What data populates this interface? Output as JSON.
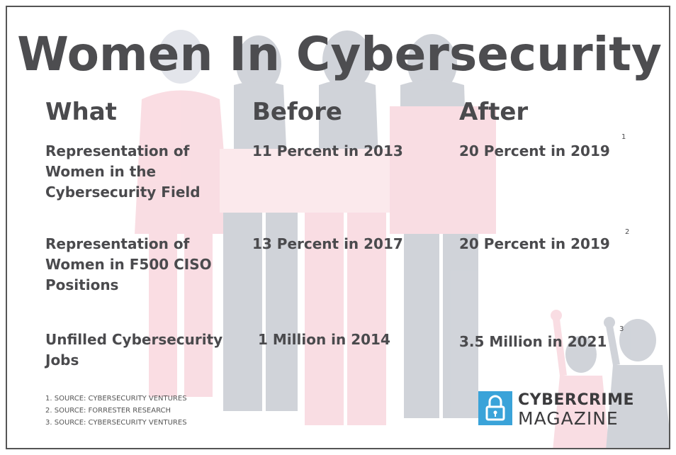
{
  "title": "Women In Cybersecurity",
  "columns": {
    "what": "What",
    "before": "Before",
    "after": "After"
  },
  "rows": [
    {
      "what": "Representation of Women in the Cybersecurity Field",
      "before": "11 Percent in 2013",
      "after": "20 Percent in 2019",
      "note": "1"
    },
    {
      "what": "Representation of Women in F500 CISO Positions",
      "before": "13 Percent in 2017",
      "after": "20 Percent in 2019",
      "note": "2"
    },
    {
      "what": "Unfilled Cybersecurity Jobs",
      "before": "1 Million in 2014",
      "after": "3.5 Million in 2021",
      "note": "3"
    }
  ],
  "sources": [
    "1. SOURCE: CYBERSECURITY VENTURES",
    "2. SOURCE: FORRESTER RESEARCH",
    "3. SOURCE: CYBERSECURITY VENTURES"
  ],
  "logo": {
    "line1": "CYBERCRIME",
    "line2": "MAGAZINE"
  },
  "colors": {
    "text": "#4a4a4d",
    "accent_blue": "#3aa3d9",
    "illustration_pink": "#f4a7b4",
    "illustration_red": "#e8748a",
    "illustration_navy": "#b9c3d4"
  }
}
